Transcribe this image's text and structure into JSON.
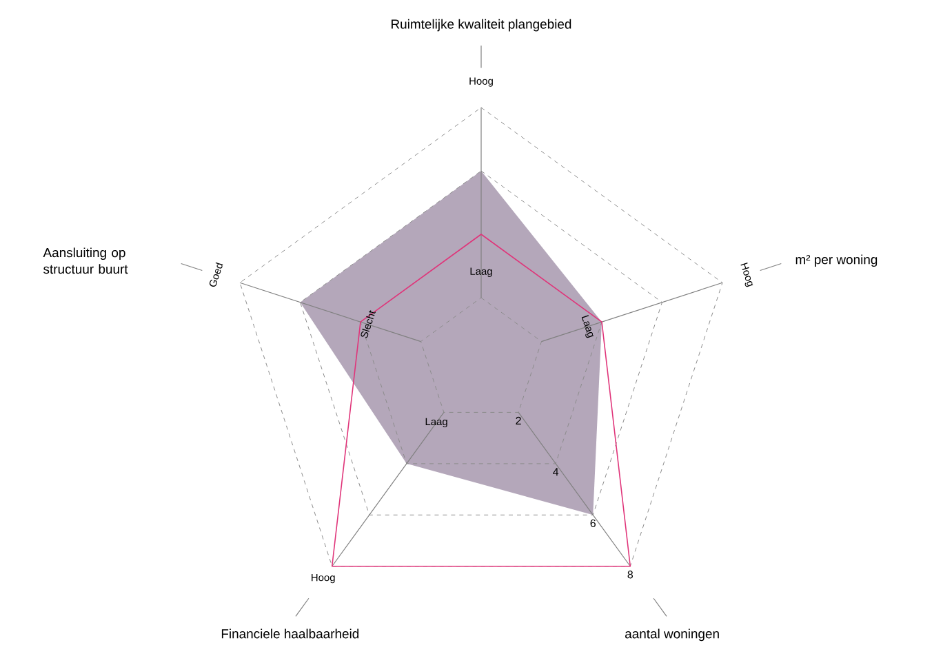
{
  "chart_data": {
    "type": "radar",
    "categories": [
      "Ruimtelijke kwaliteit plangebied",
      "m² per woning",
      "aantal woningen",
      "Financiele haalbaarheid",
      "Aansluiting op structuur buurt"
    ],
    "series": [
      {
        "color": "#b4a7ba",
        "values": [
          6,
          4,
          6,
          4,
          6
        ]
      },
      {
        "color": "#e0357a",
        "values": [
          4,
          4,
          8,
          8,
          4
        ]
      }
    ],
    "ylim": [
      0,
      8
    ],
    "yticks": [
      2,
      4,
      6,
      8
    ],
    "grid": true,
    "line_style": "solid",
    "marker": "none",
    "annotations": [
      "Hoog",
      "Laag",
      "Hoog",
      "Laag",
      "Hoog",
      "Laag",
      "Goed",
      "Slecht"
    ]
  }
}
